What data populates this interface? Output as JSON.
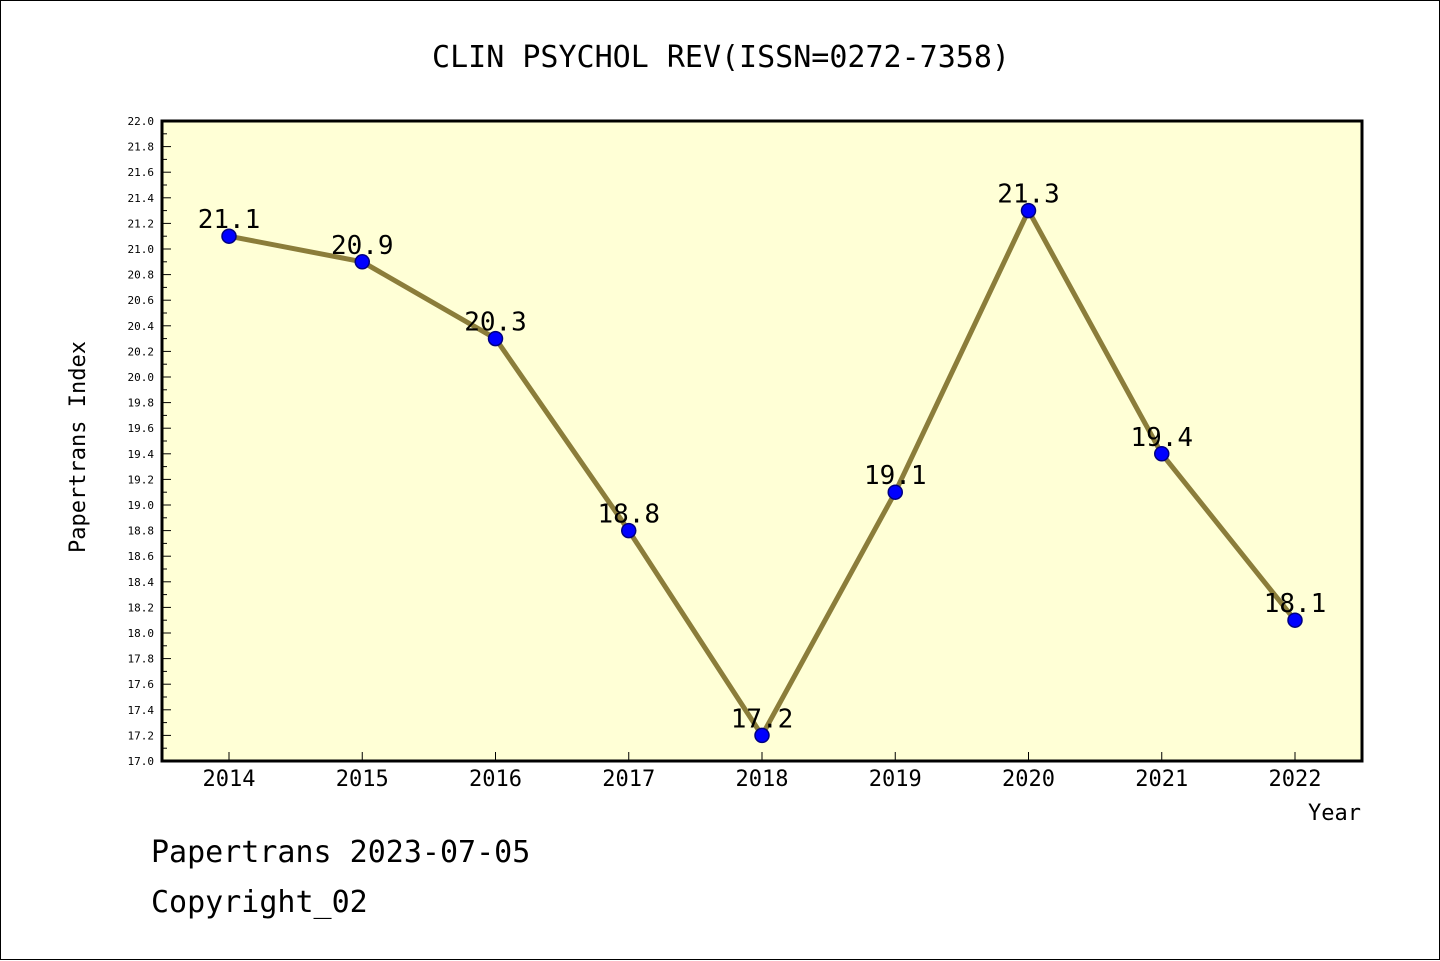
{
  "chart_data": {
    "type": "line",
    "title": "CLIN PSYCHOL REV(ISSN=0272-7358)",
    "xlabel": "Year",
    "ylabel": "Papertrans Index",
    "categories": [
      "2014",
      "2015",
      "2016",
      "2017",
      "2018",
      "2019",
      "2020",
      "2021",
      "2022"
    ],
    "series": [
      {
        "values": [
          21.1,
          20.9,
          20.3,
          18.8,
          17.2,
          19.1,
          21.3,
          19.4,
          18.1
        ],
        "data_labels": [
          "21.1",
          "20.9",
          "20.3",
          "18.8",
          "17.2",
          "19.1",
          "21.3",
          "19.4",
          "18.1"
        ]
      }
    ],
    "ylim": [
      17.0,
      22.0
    ],
    "yticks": [
      "17.0",
      "17.2",
      "17.4",
      "17.6",
      "17.8",
      "18.0",
      "18.2",
      "18.4",
      "18.6",
      "18.8",
      "19.0",
      "19.2",
      "19.4",
      "19.6",
      "19.8",
      "20.0",
      "20.2",
      "20.4",
      "20.6",
      "20.8",
      "21.0",
      "21.2",
      "21.4",
      "21.6",
      "21.8",
      "22.0"
    ],
    "grid": false,
    "legend": "none",
    "colors": {
      "plot_background": "#ffffd6",
      "line": "#8b7d3a",
      "marker": "#0000ff",
      "marker_edge": "#000080"
    }
  },
  "footer": {
    "date_line": "Papertrans 2023-07-05",
    "copyright": "Copyright_02"
  }
}
